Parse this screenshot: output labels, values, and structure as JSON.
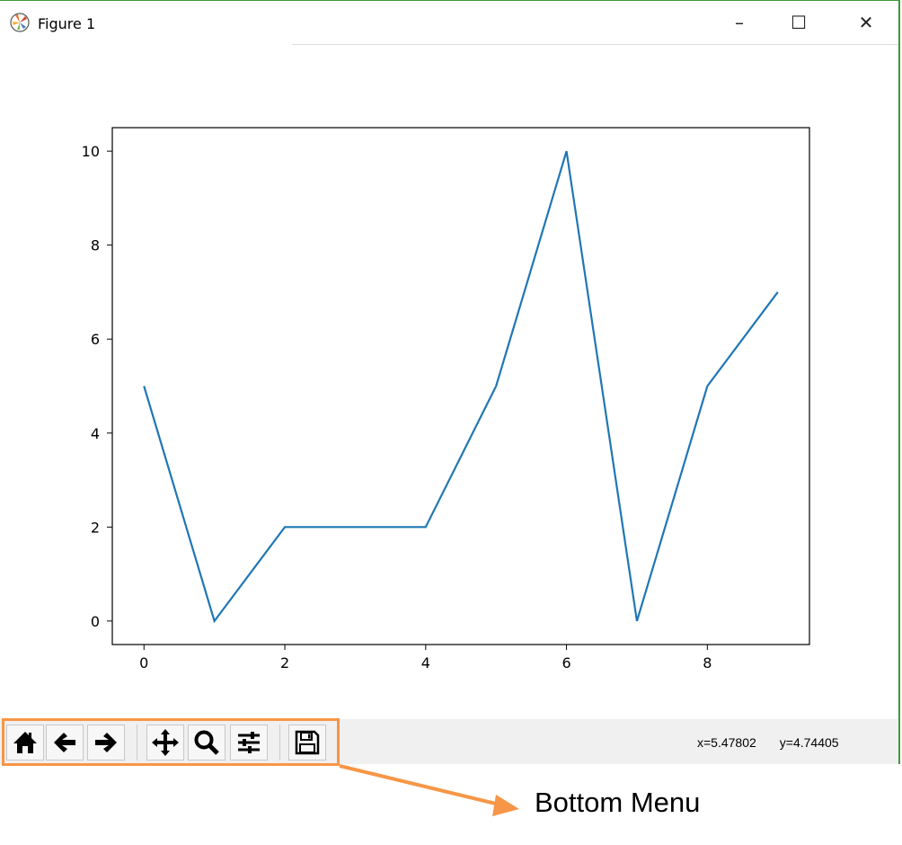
{
  "window": {
    "title": "Figure 1",
    "controls": [
      "minimize",
      "maximize",
      "close"
    ]
  },
  "toolbar": {
    "buttons": [
      {
        "name": "home-button",
        "icon": "home-icon"
      },
      {
        "name": "back-button",
        "icon": "arrow-left-icon"
      },
      {
        "name": "forward-button",
        "icon": "arrow-right-icon"
      },
      {
        "name": "pan-button",
        "icon": "move-icon"
      },
      {
        "name": "zoom-button",
        "icon": "magnifier-icon"
      },
      {
        "name": "configure-subplots-button",
        "icon": "sliders-icon"
      },
      {
        "name": "save-button",
        "icon": "floppy-disk-icon"
      }
    ],
    "x_readout": "x=5.47802",
    "y_readout": "y=4.74405"
  },
  "annotation": {
    "label": "Bottom Menu",
    "color": "#f79646"
  },
  "chart_data": {
    "type": "line",
    "x": [
      0,
      1,
      2,
      3,
      4,
      5,
      6,
      7,
      8,
      9
    ],
    "series": [
      {
        "values": [
          5,
          0,
          2,
          2,
          2,
          5,
          10,
          0,
          5,
          7
        ],
        "color": "#1f77b4"
      }
    ],
    "xticks": [
      "0",
      "2",
      "4",
      "6",
      "8"
    ],
    "yticks": [
      "0",
      "2",
      "4",
      "6",
      "8",
      "10"
    ],
    "xlim": [
      -0.45,
      9.45
    ],
    "ylim": [
      -0.5,
      10.5
    ],
    "grid": false
  }
}
